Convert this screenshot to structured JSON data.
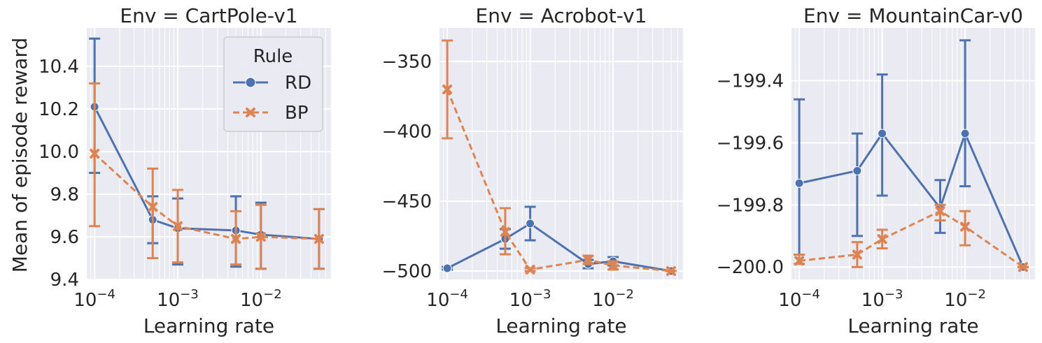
{
  "figure": {
    "ylabel": "Mean of episode reward",
    "xlabel": "Learning rate",
    "legend": {
      "title": "Rule",
      "location": "top-right of first panel",
      "entries": [
        {
          "label": "RD",
          "color": "#4c72b0",
          "marker": "circle",
          "line": "solid"
        },
        {
          "label": "BP",
          "color": "#dd8452",
          "marker": "x",
          "line": "dashed"
        }
      ]
    },
    "colors": {
      "background": "#eaeaf2",
      "grid": "#ffffff",
      "RD": "#4c72b0",
      "BP": "#dd8452"
    }
  },
  "chart_data": [
    {
      "type": "line",
      "title": "Env = CartPole-v1",
      "xlabel": "Learning rate",
      "ylabel": "Mean of episode reward",
      "xscale": "log",
      "xlim": [
        7.9e-05,
        0.071
      ],
      "ylim": [
        9.4,
        10.58
      ],
      "x": [
        0.0001,
        0.0005,
        0.001,
        0.005,
        0.01,
        0.05
      ],
      "xticks": [
        {
          "value": 0.0001,
          "base": "10",
          "exp": "−4"
        },
        {
          "value": 0.001,
          "base": "10",
          "exp": "−3"
        },
        {
          "value": 0.01,
          "base": "10",
          "exp": "−2"
        }
      ],
      "yticks": [
        {
          "value": 9.4,
          "label": "9.4"
        },
        {
          "value": 9.6,
          "label": "9.6"
        },
        {
          "value": 9.8,
          "label": "9.8"
        },
        {
          "value": 10.0,
          "label": "10.0"
        },
        {
          "value": 10.2,
          "label": "10.2"
        },
        {
          "value": 10.4,
          "label": "10.4"
        }
      ],
      "grid": true,
      "series": [
        {
          "name": "RD",
          "values": [
            10.21,
            9.68,
            9.64,
            9.63,
            9.61,
            9.59
          ],
          "err_low": [
            9.9,
            9.57,
            9.47,
            9.46,
            9.45,
            9.45
          ],
          "err_high": [
            10.53,
            9.79,
            9.78,
            9.79,
            9.76,
            9.73
          ]
        },
        {
          "name": "BP",
          "values": [
            9.99,
            9.74,
            9.65,
            9.59,
            9.6,
            9.59
          ],
          "err_low": [
            9.65,
            9.5,
            9.48,
            9.47,
            9.45,
            9.45
          ],
          "err_high": [
            10.32,
            9.92,
            9.82,
            9.72,
            9.75,
            9.73
          ]
        }
      ]
    },
    {
      "type": "line",
      "title": "Env = Acrobot-v1",
      "xlabel": "Learning rate",
      "xscale": "log",
      "xlim": [
        7.9e-05,
        0.071
      ],
      "ylim": [
        -506,
        -326
      ],
      "x": [
        0.0001,
        0.0005,
        0.001,
        0.005,
        0.01,
        0.05
      ],
      "xticks": [
        {
          "value": 0.0001,
          "base": "10",
          "exp": "−4"
        },
        {
          "value": 0.001,
          "base": "10",
          "exp": "−3"
        },
        {
          "value": 0.01,
          "base": "10",
          "exp": "−2"
        }
      ],
      "yticks": [
        {
          "value": -500,
          "label": "−500"
        },
        {
          "value": -450,
          "label": "−450"
        },
        {
          "value": -400,
          "label": "−400"
        },
        {
          "value": -350,
          "label": "−350"
        }
      ],
      "grid": true,
      "series": [
        {
          "name": "RD",
          "values": [
            -498,
            -477,
            -466,
            -495,
            -493,
            -500
          ],
          "err_low": [
            -499,
            -484,
            -478,
            -498,
            -496,
            -500
          ],
          "err_high": [
            -497,
            -470,
            -454,
            -492,
            -490,
            -500
          ]
        },
        {
          "name": "BP",
          "values": [
            -370,
            -472,
            -499,
            -492,
            -496,
            -500
          ],
          "err_low": [
            -405,
            -488,
            -500,
            -495,
            -499,
            -500
          ],
          "err_high": [
            -335,
            -455,
            -498,
            -489,
            -493,
            -500
          ]
        }
      ]
    },
    {
      "type": "line",
      "title": "Env = MountainCar-v0",
      "xlabel": "Learning rate",
      "xscale": "log",
      "xlim": [
        7.9e-05,
        0.071
      ],
      "ylim": [
        -200.04,
        -199.23
      ],
      "x": [
        0.0001,
        0.0005,
        0.001,
        0.005,
        0.01,
        0.05
      ],
      "xticks": [
        {
          "value": 0.0001,
          "base": "10",
          "exp": "−4"
        },
        {
          "value": 0.001,
          "base": "10",
          "exp": "−3"
        },
        {
          "value": 0.01,
          "base": "10",
          "exp": "−2"
        }
      ],
      "yticks": [
        {
          "value": -200.0,
          "label": "−200.0"
        },
        {
          "value": -199.8,
          "label": "−199.8"
        },
        {
          "value": -199.6,
          "label": "−199.6"
        },
        {
          "value": -199.4,
          "label": "−199.4"
        }
      ],
      "grid": true,
      "series": [
        {
          "name": "RD",
          "values": [
            -199.73,
            -199.69,
            -199.57,
            -199.81,
            -199.57,
            -200.0
          ],
          "err_low": [
            -199.96,
            -199.9,
            -199.77,
            -199.89,
            -199.74,
            -200.0
          ],
          "err_high": [
            -199.46,
            -199.57,
            -199.38,
            -199.72,
            -199.27,
            -200.0
          ]
        },
        {
          "name": "BP",
          "values": [
            -199.98,
            -199.96,
            -199.91,
            -199.82,
            -199.87,
            -200.0
          ],
          "err_low": [
            -199.99,
            -200.0,
            -199.94,
            -199.85,
            -199.93,
            -200.0
          ],
          "err_high": [
            -199.96,
            -199.92,
            -199.88,
            -199.8,
            -199.82,
            -200.0
          ]
        }
      ]
    }
  ]
}
